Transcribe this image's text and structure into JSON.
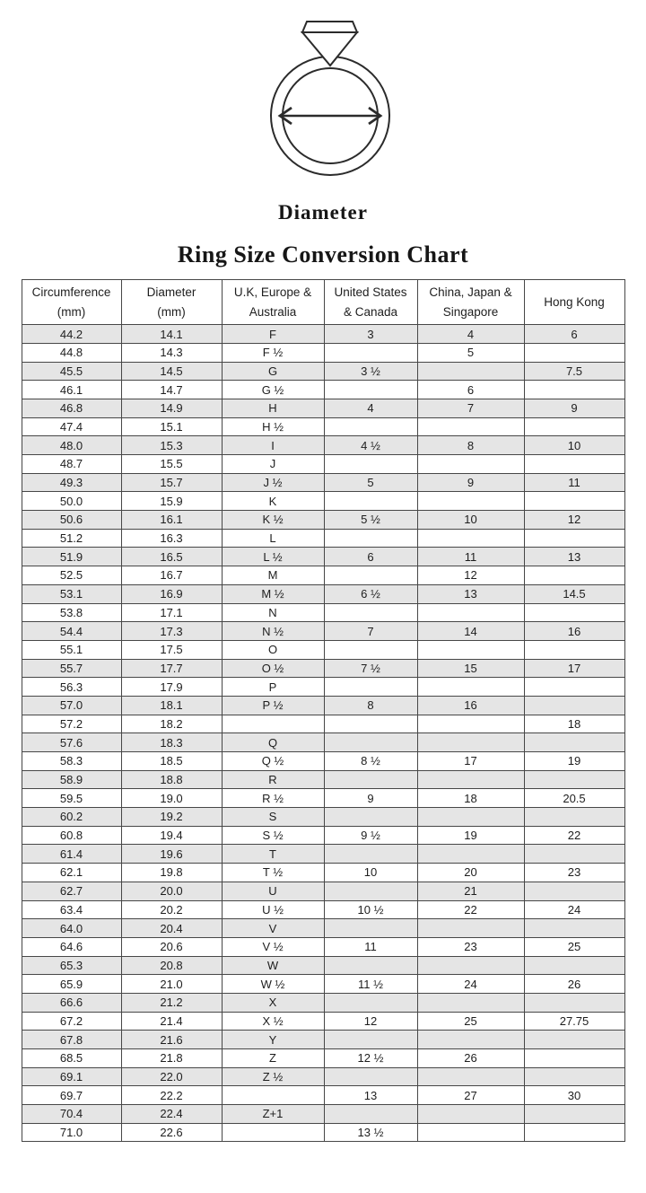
{
  "ring_diagram": {
    "icon": "ring-with-diamond-and-diameter-arrow",
    "caption": "Diameter"
  },
  "title": "Ring Size Conversion Chart",
  "colors": {
    "background": "#ffffff",
    "row_shaded": "#e5e5e5",
    "border": "#474747",
    "text": "#1e1e1e",
    "line_art": "#2b2b2b"
  },
  "table": {
    "columns": [
      "Circumference\n(mm)",
      "Diameter\n(mm)",
      "U.K, Europe &\nAustralia",
      "United States\n& Canada",
      "China, Japan &\nSingapore",
      "Hong Kong"
    ],
    "rows": [
      [
        "44.2",
        "14.1",
        "F",
        "3",
        "4",
        "6"
      ],
      [
        "44.8",
        "14.3",
        "F ½",
        "",
        "5",
        ""
      ],
      [
        "45.5",
        "14.5",
        "G",
        "3 ½",
        "",
        "7.5"
      ],
      [
        "46.1",
        "14.7",
        "G ½",
        "",
        "6",
        ""
      ],
      [
        "46.8",
        "14.9",
        "H",
        "4",
        "7",
        "9"
      ],
      [
        "47.4",
        "15.1",
        "H ½",
        "",
        "",
        ""
      ],
      [
        "48.0",
        "15.3",
        "I",
        "4 ½",
        "8",
        "10"
      ],
      [
        "48.7",
        "15.5",
        "J",
        "",
        "",
        ""
      ],
      [
        "49.3",
        "15.7",
        "J ½",
        "5",
        "9",
        "11"
      ],
      [
        "50.0",
        "15.9",
        "K",
        "",
        "",
        ""
      ],
      [
        "50.6",
        "16.1",
        "K ½",
        "5 ½",
        "10",
        "12"
      ],
      [
        "51.2",
        "16.3",
        "L",
        "",
        "",
        ""
      ],
      [
        "51.9",
        "16.5",
        "L ½",
        "6",
        "11",
        "13"
      ],
      [
        "52.5",
        "16.7",
        "M",
        "",
        "12",
        ""
      ],
      [
        "53.1",
        "16.9",
        "M ½",
        "6 ½",
        "13",
        "14.5"
      ],
      [
        "53.8",
        "17.1",
        "N",
        "",
        "",
        ""
      ],
      [
        "54.4",
        "17.3",
        "N ½",
        "7",
        "14",
        "16"
      ],
      [
        "55.1",
        "17.5",
        "O",
        "",
        "",
        ""
      ],
      [
        "55.7",
        "17.7",
        "O ½",
        "7 ½",
        "15",
        "17"
      ],
      [
        "56.3",
        "17.9",
        "P",
        "",
        "",
        ""
      ],
      [
        "57.0",
        "18.1",
        "P ½",
        "8",
        "16",
        ""
      ],
      [
        "57.2",
        "18.2",
        "",
        "",
        "",
        "18"
      ],
      [
        "57.6",
        "18.3",
        "Q",
        "",
        "",
        ""
      ],
      [
        "58.3",
        "18.5",
        "Q ½",
        "8 ½",
        "17",
        "19"
      ],
      [
        "58.9",
        "18.8",
        "R",
        "",
        "",
        ""
      ],
      [
        "59.5",
        "19.0",
        "R ½",
        "9",
        "18",
        "20.5"
      ],
      [
        "60.2",
        "19.2",
        "S",
        "",
        "",
        ""
      ],
      [
        "60.8",
        "19.4",
        "S ½",
        "9 ½",
        "19",
        "22"
      ],
      [
        "61.4",
        "19.6",
        "T",
        "",
        "",
        ""
      ],
      [
        "62.1",
        "19.8",
        "T ½",
        "10",
        "20",
        "23"
      ],
      [
        "62.7",
        "20.0",
        "U",
        "",
        "21",
        ""
      ],
      [
        "63.4",
        "20.2",
        "U ½",
        "10 ½",
        "22",
        "24"
      ],
      [
        "64.0",
        "20.4",
        "V",
        "",
        "",
        ""
      ],
      [
        "64.6",
        "20.6",
        "V ½",
        "11",
        "23",
        "25"
      ],
      [
        "65.3",
        "20.8",
        "W",
        "",
        "",
        ""
      ],
      [
        "65.9",
        "21.0",
        "W ½",
        "11 ½",
        "24",
        "26"
      ],
      [
        "66.6",
        "21.2",
        "X",
        "",
        "",
        ""
      ],
      [
        "67.2",
        "21.4",
        "X ½",
        "12",
        "25",
        "27.75"
      ],
      [
        "67.8",
        "21.6",
        "Y",
        "",
        "",
        ""
      ],
      [
        "68.5",
        "21.8",
        "Z",
        "12 ½",
        "26",
        ""
      ],
      [
        "69.1",
        "22.0",
        "Z ½",
        "",
        "",
        ""
      ],
      [
        "69.7",
        "22.2",
        "",
        "13",
        "27",
        "30"
      ],
      [
        "70.4",
        "22.4",
        "Z+1",
        "",
        "",
        ""
      ],
      [
        "71.0",
        "22.6",
        "",
        "13 ½",
        "",
        ""
      ]
    ]
  }
}
